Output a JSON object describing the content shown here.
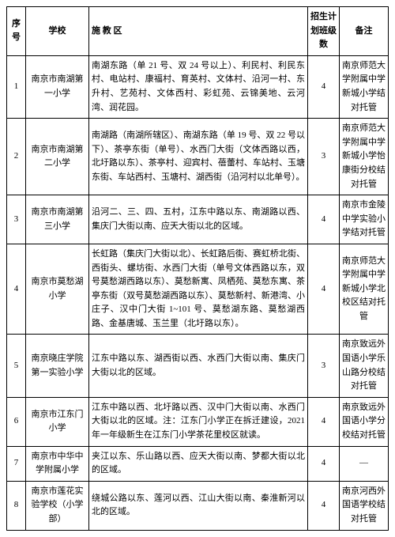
{
  "headers": {
    "seq": "序号",
    "school": "学校",
    "district": "施    教    区",
    "plan": "招生计划班级数",
    "note": "备注"
  },
  "rows": [
    {
      "seq": "1",
      "school": "南京市南湖第一小学",
      "district": "南湖东路（单 21 号、双 24 号以上）、利民村、利民东村、电站村、康福村、育英村、文体村、沿河一村、东升村、艺苑村、文体西村、彩虹苑、云锦美地、云河湾、润花园。",
      "plan": "4",
      "note": "南京师范大学附属中学新城小学结对托管"
    },
    {
      "seq": "2",
      "school": "南京市南湖第二小学",
      "district": "南湖路（南湖所辖区）、南湖东路（单 19 号、双 22 号以下）、茶亭东街（单号）、水西门大街（文体西路以西，北圩路以东）、茶亭村、迎宾村、蓓蕾村、车站村、玉塘东街、车站西村、玉塘村、湖西街（沿河村以北单号）。",
      "plan": "3",
      "note": "南京师范大学附属中学新城小学怡康街分校结对托管"
    },
    {
      "seq": "3",
      "school": "南京市南湖第三小学",
      "district": "沿河二、三、四、五村，江东中路以东、南湖路以西、集庆门大街以南、应天大街以北的区域。",
      "plan": "4",
      "note": "南京市金陵中学实验小学结对托管"
    },
    {
      "seq": "4",
      "school": "南京市莫愁湖小学",
      "district": "长虹路（集庆门大街以北）、长虹路后街、赛虹桥北街、西街头、螺坊街、水西门大街（单号文体西路以东，双号莫愁湖西路以东）、莫愁新寓、凤栖苑、莫愁东寓、茶亭东街（双号莫愁湖西路以东）、莫愁新村、新港湾、小庄子、汉中门大街 1~101 号、莫愁湖东路、莫愁湖西路、金基唐城、玉兰里（北圩路以东）。",
      "plan": "4",
      "note": "南京师范大学附属中学新城小学北校区结对托管"
    },
    {
      "seq": "5",
      "school": "南京晓庄学院第一实验小学",
      "district": "江东中路以东、湖西街以西、水西门大街以南、集庆门大街以北的区域。",
      "plan": "3",
      "note": "南京致远外国语小学乐山路分校结对托管"
    },
    {
      "seq": "6",
      "school": "南京市江东门小学",
      "district": "江东中路以西、北圩路以西、汉中门大街以南、水西门大街以北的区域。注：江东门小学正在拆迁建设，2021 年一年级新生在江东门小学茶花里校区就读。",
      "plan": "4",
      "note": "南京致远外国语小学分校结对托管"
    },
    {
      "seq": "7",
      "school": "南京市中华中学附属小学",
      "district": "夹江以东、乐山路以西、应天大街以南、梦都大街以北的区域。",
      "plan": "4",
      "note": "—"
    },
    {
      "seq": "8",
      "school": "南京市莲花实验学校（小学部）",
      "district": "绕城公路以东、莲河以西、江山大街以南、秦淮新河以北的区域。",
      "plan": "4",
      "note": "南京河西外国语学校结对托管"
    }
  ]
}
